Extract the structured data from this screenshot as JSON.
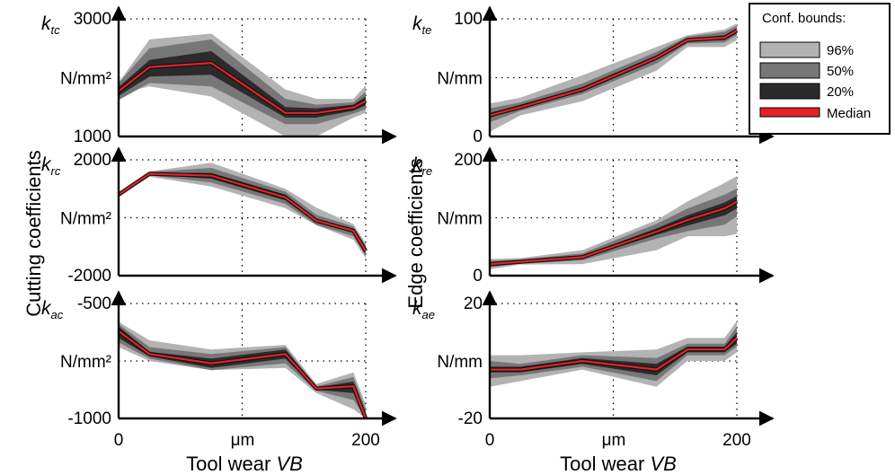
{
  "figure": {
    "left_ylabel": "Cutting coefficients",
    "right_ylabel": "Edge coefficients",
    "xlabel_prefix": "Tool wear ",
    "xlabel_var": "VB",
    "x_tick_labels": [
      "0",
      "μm",
      "200"
    ]
  },
  "legend": {
    "title": "Conf. bounds:",
    "items": [
      {
        "label": "96%",
        "color": "#b3b3b3"
      },
      {
        "label": "50%",
        "color": "#777777"
      },
      {
        "label": "20%",
        "color": "#2b2b2b"
      },
      {
        "label": "Median",
        "color": "#e32227"
      }
    ]
  },
  "colors": {
    "band96": "#b3b3b3",
    "band50": "#777777",
    "band20": "#2b2b2b",
    "median": "#e32227"
  },
  "chart_data": [
    {
      "type": "area",
      "panel": "k_tc",
      "symbol_main": "k",
      "symbol_sub": "tc",
      "ytick_top": "3000",
      "unit": "N/mm²",
      "ytick_bottom": "1000",
      "xlim": [
        0,
        200
      ],
      "ylim": [
        1000,
        3000
      ],
      "x": [
        0,
        25,
        75,
        135,
        160,
        190,
        200
      ],
      "median": [
        1770,
        2180,
        2250,
        1400,
        1400,
        1490,
        1600
      ],
      "b20": [
        [
          1690,
          2020,
          2050,
          1320,
          1320,
          1440,
          1530
        ],
        [
          1840,
          2300,
          2450,
          1500,
          1480,
          1540,
          1680
        ]
      ],
      "b50": [
        [
          1620,
          1910,
          1850,
          1210,
          1210,
          1390,
          1460
        ],
        [
          1910,
          2500,
          2650,
          1640,
          1540,
          1580,
          1760
        ]
      ],
      "b96": [
        [
          1730,
          1850,
          1680,
          1000,
          1000,
          1320,
          1400
        ],
        [
          1920,
          2650,
          2750,
          1800,
          1640,
          1640,
          1870
        ]
      ]
    },
    {
      "type": "area",
      "panel": "k_rc",
      "symbol_main": "k",
      "symbol_sub": "rc",
      "ytick_top": "2000",
      "unit": "N/mm²",
      "ytick_bottom": "-2000",
      "xlim": [
        0,
        200
      ],
      "ylim": [
        -2000,
        2000
      ],
      "x": [
        0,
        25,
        75,
        135,
        160,
        190,
        200
      ],
      "median": [
        800,
        1520,
        1450,
        700,
        -100,
        -450,
        -1150
      ],
      "b20": [
        [
          780,
          1490,
          1350,
          600,
          -170,
          -520,
          -1230
        ],
        [
          820,
          1550,
          1550,
          800,
          -40,
          -380,
          -1060
        ]
      ],
      "b50": [
        [
          760,
          1460,
          1220,
          480,
          -250,
          -640,
          -1320
        ],
        [
          840,
          1580,
          1720,
          900,
          100,
          -300,
          -970
        ]
      ],
      "b96": [
        [
          740,
          1420,
          1080,
          330,
          -250,
          -760,
          -1400
        ],
        [
          860,
          1600,
          1900,
          1000,
          350,
          -220,
          -880
        ]
      ]
    },
    {
      "type": "area",
      "panel": "k_ac",
      "symbol_main": "k",
      "symbol_sub": "ac",
      "ytick_top": "-500",
      "unit": "N/mm²",
      "ytick_bottom": "-1000",
      "xlim": [
        0,
        200
      ],
      "ylim": [
        -1000,
        -500
      ],
      "x": [
        0,
        25,
        75,
        135,
        160,
        190,
        200
      ],
      "median": [
        -620,
        -720,
        -760,
        -720,
        -870,
        -860,
        -1000
      ],
      "b20": [
        [
          -650,
          -730,
          -780,
          -740,
          -875,
          -890,
          -1000
        ],
        [
          -600,
          -710,
          -740,
          -700,
          -865,
          -840,
          -980
        ]
      ],
      "b50": [
        [
          -670,
          -740,
          -790,
          -760,
          -880,
          -920,
          -1000
        ],
        [
          -590,
          -690,
          -720,
          -690,
          -860,
          -820,
          -960
        ]
      ],
      "b96": [
        [
          -690,
          -750,
          -790,
          -780,
          -890,
          -960,
          -1000
        ],
        [
          -580,
          -660,
          -700,
          -680,
          -850,
          -800,
          -940
        ]
      ]
    },
    {
      "type": "area",
      "panel": "k_te",
      "symbol_main": "k",
      "symbol_sub": "te",
      "ytick_top": "100",
      "unit": "N/mm",
      "ytick_bottom": "0",
      "xlim": [
        0,
        200
      ],
      "ylim": [
        0,
        100
      ],
      "x": [
        0,
        25,
        75,
        135,
        160,
        190,
        200
      ],
      "median": [
        18,
        25,
        40,
        67,
        82,
        84,
        90
      ],
      "b20": [
        [
          16,
          24,
          38,
          65,
          81,
          82,
          88
        ],
        [
          20,
          27,
          42,
          69,
          83,
          86,
          92
        ]
      ],
      "b50": [
        [
          12,
          22,
          36,
          62,
          79,
          80,
          86
        ],
        [
          24,
          29,
          45,
          72,
          85,
          89,
          94
        ]
      ],
      "b96": [
        [
          4,
          18,
          30,
          56,
          76,
          76,
          82
        ],
        [
          28,
          33,
          52,
          76,
          86,
          91,
          96
        ]
      ]
    },
    {
      "type": "area",
      "panel": "k_re",
      "symbol_main": "k",
      "symbol_sub": "re",
      "ytick_top": "200",
      "unit": "N/mm",
      "ytick_bottom": "0",
      "xlim": [
        0,
        200
      ],
      "ylim": [
        0,
        250
      ],
      "x": [
        0,
        25,
        75,
        135,
        160,
        190,
        200
      ],
      "median": [
        25,
        30,
        40,
        95,
        120,
        145,
        160
      ],
      "b20": [
        [
          22,
          28,
          37,
          88,
          108,
          130,
          145
        ],
        [
          28,
          32,
          43,
          102,
          130,
          158,
          172
        ]
      ],
      "b50": [
        [
          18,
          26,
          33,
          80,
          96,
          110,
          128
        ],
        [
          32,
          35,
          48,
          112,
          145,
          175,
          188
        ]
      ],
      "b96": [
        [
          14,
          24,
          25,
          55,
          85,
          85,
          90
        ],
        [
          36,
          38,
          55,
          120,
          160,
          200,
          215
        ]
      ]
    },
    {
      "type": "area",
      "panel": "k_ae",
      "symbol_main": "k",
      "symbol_sub": "ae",
      "ytick_top": "20",
      "unit": "N/mm",
      "ytick_bottom": "-20",
      "xlim": [
        0,
        200
      ],
      "ylim": [
        -20,
        20
      ],
      "x": [
        0,
        25,
        75,
        135,
        160,
        190,
        200
      ],
      "median": [
        -3,
        -3,
        0,
        -3,
        4,
        4,
        8
      ],
      "b20": [
        [
          -4,
          -4,
          -1,
          -5,
          3,
          3,
          6
        ],
        [
          -2,
          -2,
          1,
          -1,
          5,
          5,
          10
        ]
      ],
      "b50": [
        [
          -6,
          -5,
          -2,
          -7,
          2,
          2,
          5
        ],
        [
          0,
          -1,
          2,
          1,
          6,
          6,
          12
        ]
      ],
      "b96": [
        [
          -9,
          -7,
          -3,
          -9,
          0,
          0,
          3
        ],
        [
          2,
          2,
          3,
          4,
          8,
          8,
          14
        ]
      ]
    }
  ]
}
